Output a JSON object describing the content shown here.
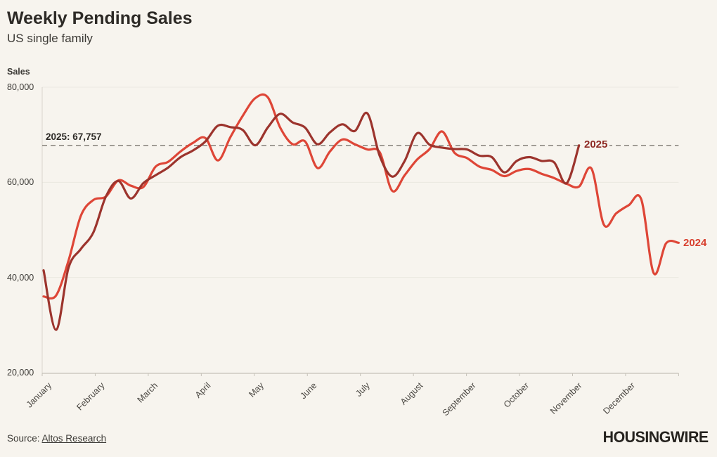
{
  "header": {
    "title": "Weekly Pending Sales",
    "subtitle": "US single family"
  },
  "chart_data": {
    "type": "line",
    "title": "Weekly Pending Sales",
    "subtitle": "US single family",
    "ylabel": "Sales",
    "ylim": [
      20000,
      80000
    ],
    "y_ticks": [
      20000,
      40000,
      60000,
      80000
    ],
    "y_tick_labels": [
      "20,000",
      "40,000",
      "60,000",
      "80,000"
    ],
    "x_months": [
      "January",
      "February",
      "March",
      "April",
      "May",
      "June",
      "July",
      "August",
      "September",
      "October",
      "November",
      "December"
    ],
    "weeks_per_year": 52,
    "grid": "horizontal-faint",
    "legend_position": "end-of-line-labels",
    "reference_line": {
      "value": 67757,
      "label": "2025: 67,757",
      "style": "dashed",
      "color": "#8f8b84"
    },
    "series": [
      {
        "name": "2024",
        "color": "#de4637",
        "label_color": "#d8402f",
        "values": [
          36000,
          36200,
          43500,
          53000,
          56300,
          57000,
          60400,
          59300,
          59000,
          63300,
          64300,
          66500,
          68300,
          69300,
          64600,
          69500,
          74000,
          77700,
          77900,
          71500,
          68000,
          68600,
          63000,
          66500,
          69000,
          68000,
          66900,
          66300,
          58200,
          61500,
          64800,
          67000,
          70700,
          66200,
          65100,
          63300,
          62600,
          61300,
          62400,
          62800,
          61800,
          60900,
          59700,
          59100,
          62900,
          51100,
          53500,
          55200,
          56400,
          40900,
          47200,
          47300
        ]
      },
      {
        "name": "2025",
        "color": "#9c342d",
        "label_color": "#8e2a24",
        "values": [
          41500,
          29000,
          42000,
          46000,
          49500,
          57000,
          60300,
          56600,
          59800,
          61500,
          63100,
          65300,
          66700,
          68600,
          71900,
          71600,
          71000,
          67800,
          71500,
          74400,
          72600,
          71500,
          68000,
          70500,
          72200,
          70800,
          74500,
          65500,
          61200,
          64500,
          70300,
          67900,
          67300,
          67000,
          66900,
          65600,
          65300,
          62100,
          64500,
          65300,
          64500,
          64200,
          59800,
          67757
        ]
      }
    ]
  },
  "footer": {
    "source_prefix": "Source:",
    "source_link": "Altos Research",
    "logo": "HOUSINGWIRE"
  },
  "colors": {
    "background": "#f7f4ee",
    "text": "#2d2a26",
    "gridline": "#ebe8e1",
    "axis": "#c5c1b8",
    "series_2024": "#de4637",
    "series_2025": "#9c342d"
  }
}
